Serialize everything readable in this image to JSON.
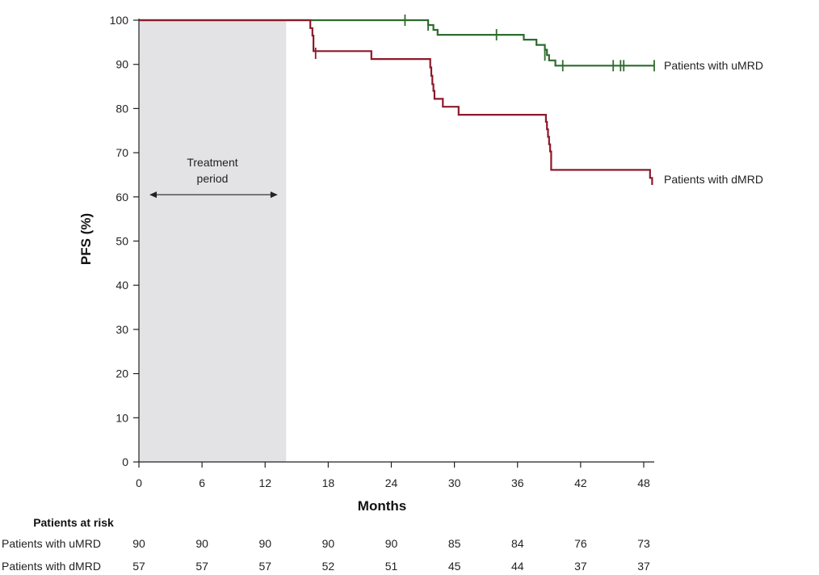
{
  "chart_data": {
    "type": "line",
    "subtype": "kaplan-meier",
    "xlabel": "Months",
    "ylabel": "PFS (%)",
    "xlim": [
      0,
      49
    ],
    "ylim": [
      0,
      100
    ],
    "xticks": [
      0,
      6,
      12,
      18,
      24,
      30,
      36,
      42,
      48
    ],
    "yticks": [
      0,
      10,
      20,
      30,
      40,
      50,
      60,
      70,
      80,
      90,
      100
    ],
    "grid": false,
    "shaded_region": {
      "x_start": 0,
      "x_end": 14,
      "color": "#e3e3e5"
    },
    "annotation": {
      "line1": "Treatment",
      "line2": "period",
      "arrow_from": 1,
      "arrow_to": 13.2,
      "arrow_y": 60.5
    },
    "series": [
      {
        "name": "Patients with uMRD",
        "color": "#2e6b2e",
        "steps": [
          [
            0,
            100
          ],
          [
            27.5,
            100
          ],
          [
            27.5,
            98.9
          ],
          [
            28.0,
            98.9
          ],
          [
            28.0,
            97.8
          ],
          [
            28.4,
            97.8
          ],
          [
            28.4,
            96.7
          ],
          [
            36.6,
            96.7
          ],
          [
            36.6,
            95.6
          ],
          [
            37.8,
            95.6
          ],
          [
            37.8,
            94.4
          ],
          [
            38.6,
            94.4
          ],
          [
            38.6,
            93.3
          ],
          [
            38.8,
            93.3
          ],
          [
            38.8,
            92.1
          ],
          [
            39.0,
            92.1
          ],
          [
            39.0,
            90.9
          ],
          [
            39.6,
            90.9
          ],
          [
            39.6,
            89.7
          ],
          [
            49,
            89.7
          ]
        ],
        "censor": [
          [
            25.3,
            100
          ],
          [
            27.5,
            98.9
          ],
          [
            34.0,
            96.7
          ],
          [
            38.6,
            92.1
          ],
          [
            40.3,
            89.7
          ],
          [
            45.1,
            89.7
          ],
          [
            45.8,
            89.7
          ],
          [
            46.1,
            89.7
          ],
          [
            49.0,
            89.7
          ]
        ]
      },
      {
        "name": "Patients with dMRD",
        "color": "#8b1a2b",
        "steps": [
          [
            0,
            100
          ],
          [
            16.3,
            100
          ],
          [
            16.3,
            98.2
          ],
          [
            16.5,
            98.2
          ],
          [
            16.5,
            96.5
          ],
          [
            16.6,
            96.5
          ],
          [
            16.6,
            93.0
          ],
          [
            22.1,
            93.0
          ],
          [
            22.1,
            91.2
          ],
          [
            27.7,
            91.2
          ],
          [
            27.7,
            89.3
          ],
          [
            27.8,
            89.3
          ],
          [
            27.8,
            87.4
          ],
          [
            27.9,
            87.4
          ],
          [
            27.9,
            85.5
          ],
          [
            28.0,
            85.5
          ],
          [
            28.0,
            84.0
          ],
          [
            28.1,
            84.0
          ],
          [
            28.1,
            82.2
          ],
          [
            28.9,
            82.2
          ],
          [
            28.9,
            80.4
          ],
          [
            30.4,
            80.4
          ],
          [
            30.4,
            78.6
          ],
          [
            38.7,
            78.6
          ],
          [
            38.7,
            77.0
          ],
          [
            38.8,
            77.0
          ],
          [
            38.8,
            75.3
          ],
          [
            38.9,
            75.3
          ],
          [
            38.9,
            73.6
          ],
          [
            39.0,
            73.6
          ],
          [
            39.0,
            71.9
          ],
          [
            39.1,
            71.9
          ],
          [
            39.1,
            70.3
          ],
          [
            39.2,
            70.3
          ],
          [
            39.2,
            66.1
          ],
          [
            48.6,
            66.1
          ],
          [
            48.6,
            64.3
          ],
          [
            48.8,
            64.3
          ],
          [
            48.8,
            62.7
          ]
        ],
        "censor": [
          [
            16.8,
            92.5
          ]
        ]
      }
    ],
    "risk_table": {
      "title": "Patients at risk",
      "times": [
        0,
        6,
        12,
        18,
        24,
        30,
        36,
        42,
        48
      ],
      "rows": [
        {
          "label": "Patients with uMRD",
          "values": [
            90,
            90,
            90,
            90,
            90,
            85,
            84,
            76,
            73
          ]
        },
        {
          "label": "Patients with dMRD",
          "values": [
            57,
            57,
            57,
            52,
            51,
            45,
            44,
            37,
            37
          ]
        }
      ]
    }
  }
}
